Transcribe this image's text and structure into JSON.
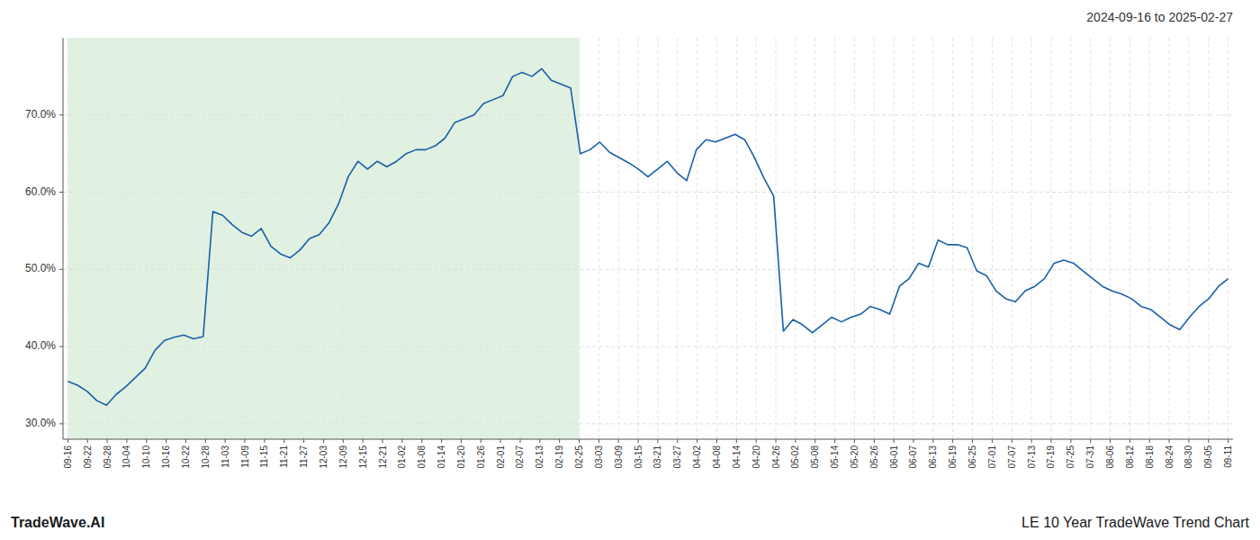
{
  "chart_data": {
    "type": "line",
    "title": "2024-09-16 to 2025-02-27",
    "annotations": [
      "TradeWave.AI",
      "LE 10 Year TradeWave Trend Chart"
    ],
    "color": "#1a5fa8",
    "grid": true,
    "shaded_region": {
      "start": 0,
      "end": 52.8814,
      "color": "#c8e6c8"
    },
    "values": [
      0.355,
      0.35,
      0.342,
      0.33,
      0.324,
      0.338,
      0.348,
      0.36,
      0.372,
      0.395,
      0.408,
      0.412,
      0.415,
      0.41,
      0.413,
      0.575,
      0.57,
      0.558,
      0.548,
      0.543,
      0.553,
      0.53,
      0.52,
      0.515,
      0.525,
      0.54,
      0.545,
      0.56,
      0.585,
      0.62,
      0.64,
      0.63,
      0.64,
      0.633,
      0.64,
      0.65,
      0.655,
      0.655,
      0.66,
      0.67,
      0.69,
      0.695,
      0.7,
      0.715,
      0.72,
      0.725,
      0.75,
      0.755,
      0.75,
      0.76,
      0.745,
      0.74,
      0.735,
      0.65,
      0.655,
      0.665,
      0.652,
      0.645,
      0.638,
      0.63,
      0.62,
      0.63,
      0.64,
      0.625,
      0.615,
      0.655,
      0.668,
      0.665,
      0.67,
      0.675,
      0.668,
      0.645,
      0.618,
      0.595,
      0.42,
      0.435,
      0.428,
      0.418,
      0.428,
      0.438,
      0.432,
      0.438,
      0.442,
      0.452,
      0.448,
      0.442,
      0.478,
      0.488,
      0.508,
      0.503,
      0.538,
      0.532,
      0.532,
      0.528,
      0.498,
      0.492,
      0.472,
      0.462,
      0.458,
      0.472,
      0.478,
      0.488,
      0.508,
      0.512,
      0.508,
      0.498,
      0.488,
      0.478,
      0.472,
      0.468,
      0.462,
      0.452,
      0.448,
      0.438,
      0.428,
      0.422,
      0.438,
      0.452,
      0.462,
      0.478,
      0.488
    ],
    "xlim": [
      -0.5,
      120.5
    ],
    "xticks": [
      {
        "value": 0,
        "label": "09-16"
      },
      {
        "value": 2.0339,
        "label": "09-22"
      },
      {
        "value": 4.0678,
        "label": "09-28"
      },
      {
        "value": 6.1017,
        "label": "10-04"
      },
      {
        "value": 8.1356,
        "label": "10-10"
      },
      {
        "value": 10.1695,
        "label": "10-16"
      },
      {
        "value": 12.2034,
        "label": "10-22"
      },
      {
        "value": 14.2373,
        "label": "10-28"
      },
      {
        "value": 16.2712,
        "label": "11-03"
      },
      {
        "value": 18.3051,
        "label": "11-09"
      },
      {
        "value": 20.339,
        "label": "11-15"
      },
      {
        "value": 22.3729,
        "label": "11-21"
      },
      {
        "value": 24.4068,
        "label": "11-27"
      },
      {
        "value": 26.4407,
        "label": "12-03"
      },
      {
        "value": 28.4746,
        "label": "12-09"
      },
      {
        "value": 30.5085,
        "label": "12-15"
      },
      {
        "value": 32.5424,
        "label": "12-21"
      },
      {
        "value": 34.5763,
        "label": "01-02"
      },
      {
        "value": 36.6102,
        "label": "01-08"
      },
      {
        "value": 38.6441,
        "label": "01-14"
      },
      {
        "value": 40.678,
        "label": "01-20"
      },
      {
        "value": 42.7119,
        "label": "01-26"
      },
      {
        "value": 44.7458,
        "label": "02-01"
      },
      {
        "value": 46.7797,
        "label": "02-07"
      },
      {
        "value": 48.8136,
        "label": "02-13"
      },
      {
        "value": 50.8475,
        "label": "02-19"
      },
      {
        "value": 52.8814,
        "label": "02-25"
      },
      {
        "value": 54.9153,
        "label": "03-03"
      },
      {
        "value": 56.9492,
        "label": "03-09"
      },
      {
        "value": 58.9831,
        "label": "03-15"
      },
      {
        "value": 61.0169,
        "label": "03-21"
      },
      {
        "value": 63.0508,
        "label": "03-27"
      },
      {
        "value": 65.0847,
        "label": "04-02"
      },
      {
        "value": 67.1186,
        "label": "04-08"
      },
      {
        "value": 69.1525,
        "label": "04-14"
      },
      {
        "value": 71.1864,
        "label": "04-20"
      },
      {
        "value": 73.2203,
        "label": "04-26"
      },
      {
        "value": 75.2542,
        "label": "05-02"
      },
      {
        "value": 77.2881,
        "label": "05-08"
      },
      {
        "value": 79.322,
        "label": "05-14"
      },
      {
        "value": 81.3559,
        "label": "05-20"
      },
      {
        "value": 83.3898,
        "label": "05-26"
      },
      {
        "value": 85.4237,
        "label": "06-01"
      },
      {
        "value": 87.4576,
        "label": "06-07"
      },
      {
        "value": 89.4915,
        "label": "06-13"
      },
      {
        "value": 91.5254,
        "label": "06-19"
      },
      {
        "value": 93.5593,
        "label": "06-25"
      },
      {
        "value": 95.5932,
        "label": "07-01"
      },
      {
        "value": 97.6271,
        "label": "07-07"
      },
      {
        "value": 99.661,
        "label": "07-13"
      },
      {
        "value": 101.6949,
        "label": "07-19"
      },
      {
        "value": 103.7288,
        "label": "07-25"
      },
      {
        "value": 105.7627,
        "label": "07-31"
      },
      {
        "value": 107.7966,
        "label": "08-06"
      },
      {
        "value": 109.8305,
        "label": "08-12"
      },
      {
        "value": 111.8644,
        "label": "08-18"
      },
      {
        "value": 113.8983,
        "label": "08-24"
      },
      {
        "value": 115.9322,
        "label": "08-30"
      },
      {
        "value": 117.9661,
        "label": "09-05"
      },
      {
        "value": 120,
        "label": "09-11"
      }
    ],
    "ylim": [
      0.28,
      0.8
    ],
    "yticks": [
      {
        "value": 0.3,
        "label": "30.0%"
      },
      {
        "value": 0.4,
        "label": "40.0%"
      },
      {
        "value": 0.5,
        "label": "50.0%"
      },
      {
        "value": 0.6,
        "label": "60.0%"
      },
      {
        "value": 0.7,
        "label": "70.0%"
      }
    ]
  }
}
